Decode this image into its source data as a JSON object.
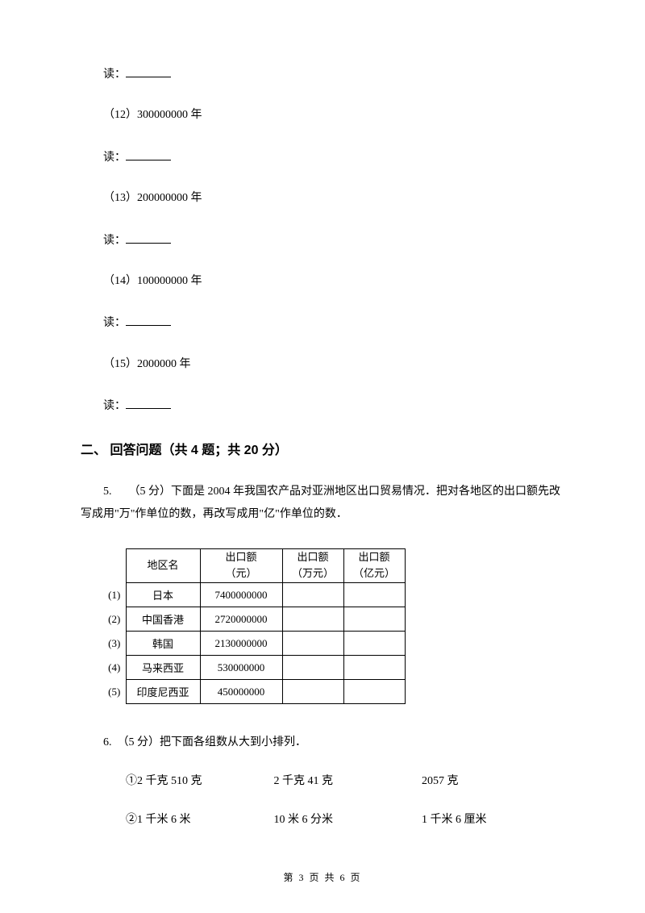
{
  "items": [
    {
      "answer_prefix": "读："
    },
    {
      "label": "（12）300000000 年",
      "answer_prefix": "读："
    },
    {
      "label": "（13）200000000 年",
      "answer_prefix": "读："
    },
    {
      "label": "（14）100000000 年",
      "answer_prefix": "读："
    },
    {
      "label": "（15）2000000 年",
      "answer_prefix": "读："
    }
  ],
  "section2_heading": "二、 回答问题（共 4 题；共 20 分）",
  "q5": {
    "intro": "5.　　（5 分）下面是 2004 年我国农产品对亚洲地区出口贸易情况．把对各地区的出口额先改写成用\"万\"作单位的数，再改写成用\"亿\"作单位的数．",
    "table": {
      "headers": {
        "region": "地区名",
        "export_yuan_l1": "出口额",
        "export_yuan_l2": "（元）",
        "export_wan_l1": "出口额",
        "export_wan_l2": "（万元）",
        "export_yi_l1": "出口额",
        "export_yi_l2": "（亿元）"
      },
      "rows": [
        {
          "num": "(1)",
          "region": "日本",
          "yuan": "7400000000"
        },
        {
          "num": "(2)",
          "region": "中国香港",
          "yuan": "2720000000"
        },
        {
          "num": "(3)",
          "region": "韩国",
          "yuan": "2130000000"
        },
        {
          "num": "(4)",
          "region": "马来西亚",
          "yuan": "530000000"
        },
        {
          "num": "(5)",
          "region": "印度尼西亚",
          "yuan": "450000000"
        }
      ]
    }
  },
  "q6": {
    "intro": "6.　（5 分）把下面各组数从大到小排列．",
    "group1": {
      "prefix": "①",
      "a": "2 千克 510 克",
      "b": "2 千克 41 克",
      "c": "2057 克"
    },
    "group2": {
      "prefix": "②",
      "a": "1 千米 6 米",
      "b": "10 米 6 分米",
      "c": "1 千米 6 厘米"
    }
  },
  "footer": "第 3 页 共 6 页"
}
